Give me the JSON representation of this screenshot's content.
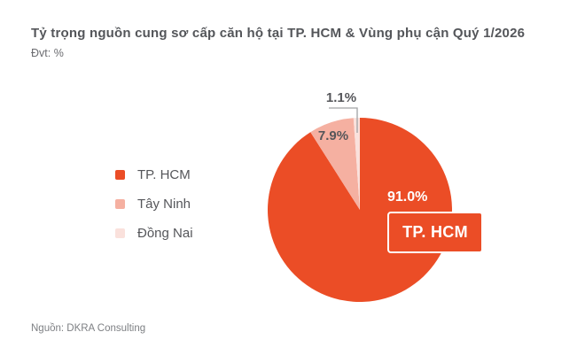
{
  "header": {
    "title": "Tỷ trọng nguồn cung sơ cấp căn hộ tại TP. HCM & Vùng phụ cận Quý 1/2026",
    "unit": "Đvt: %"
  },
  "chart_data": {
    "type": "pie",
    "title": "Tỷ trọng nguồn cung sơ cấp căn hộ tại TP. HCM & Vùng phụ cận Quý 1/2026",
    "unit": "%",
    "categories": [
      "TP. HCM",
      "Tây Ninh",
      "Đồng Nai"
    ],
    "values": [
      91.0,
      7.9,
      1.1
    ],
    "value_labels": [
      "91.0%",
      "7.9%",
      "1.1%"
    ],
    "colors": [
      "#EB4D26",
      "#F5B0A1",
      "#FAE1DC"
    ],
    "start_angle_deg": 0,
    "direction": "clockwise",
    "legend_position": "left",
    "grid": false
  },
  "annotation_box": {
    "label": "TP. HCM"
  },
  "footer": {
    "source": "Nguồn: DKRA Consulting"
  }
}
